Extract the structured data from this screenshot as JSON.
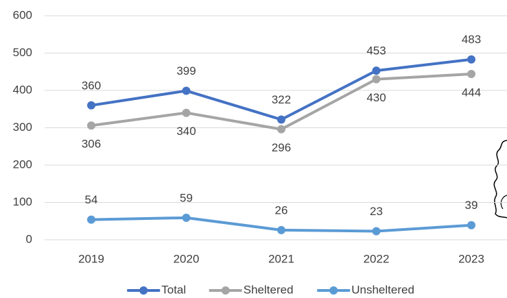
{
  "chart_data": {
    "type": "line",
    "categories": [
      "2019",
      "2020",
      "2021",
      "2022",
      "2023"
    ],
    "series": [
      {
        "name": "Total",
        "color": "#4472c4",
        "values": [
          360,
          399,
          322,
          453,
          483
        ]
      },
      {
        "name": "Sheltered",
        "color": "#a5a5a5",
        "values": [
          306,
          340,
          296,
          430,
          444
        ]
      },
      {
        "name": "Unsheltered",
        "color": "#5b9bd5",
        "values": [
          54,
          59,
          26,
          23,
          39
        ]
      }
    ],
    "ylim": [
      0,
      600
    ],
    "yticks": [
      0,
      100,
      200,
      300,
      400,
      500,
      600
    ],
    "grid": true,
    "legend": "bottom"
  }
}
